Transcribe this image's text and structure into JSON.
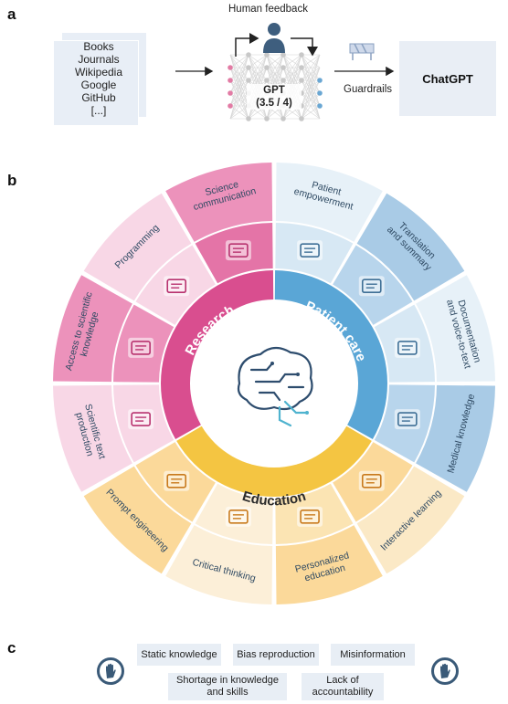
{
  "panels": {
    "a": "a",
    "b": "b",
    "c": "c"
  },
  "panel_a": {
    "sources": [
      "Books",
      "Journals",
      "Wikipedia",
      "Google",
      "GitHub",
      "[...]"
    ],
    "human_feedback": "Human feedback",
    "gpt_label": "GPT",
    "gpt_version": "(3.5 / 4)",
    "guardrails": "Guardrails",
    "output": "ChatGPT",
    "colors": {
      "input_node": "#e27ba4",
      "output_node": "#6aa7d3",
      "hidden_node": "#c8c8c8",
      "person": "#3e5e7e"
    }
  },
  "panel_b": {
    "domains": {
      "research": "Research",
      "patient_care": "Patient care",
      "education": "Education"
    },
    "outer_labels": [
      {
        "line1": "Science",
        "line2": "communication"
      },
      {
        "line1": "Patient",
        "line2": "empowerment"
      },
      {
        "line1": "Translation",
        "line2": "and summary"
      },
      {
        "line1": "Documentation",
        "line2": "and voice-to-text"
      },
      {
        "line1": "Medical knowledge",
        "line2": ""
      },
      {
        "line1": "Interactive learning",
        "line2": ""
      },
      {
        "line1": "Personalized",
        "line2": "education"
      },
      {
        "line1": "Critical thinking",
        "line2": ""
      },
      {
        "line1": "Prompt engineering",
        "line2": ""
      },
      {
        "line1": "Scientific text",
        "line2": "production"
      },
      {
        "line1": "Access to scientific",
        "line2": "knowledge"
      },
      {
        "line1": "Programming",
        "line2": ""
      }
    ],
    "colors": {
      "research": "#d94e8f",
      "patient_care": "#5aa6d6",
      "education": "#f4c542"
    }
  },
  "panel_c": {
    "limitations": [
      "Static knowledge",
      "Bias reproduction",
      "Misinformation"
    ],
    "limitations_row2": [
      {
        "line1": "Shortage in knowledge",
        "line2": "and skills"
      },
      {
        "line1": "Lack of",
        "line2": "accountability"
      }
    ],
    "icons": [
      "stop-hand-icon",
      "stop-hand-icon"
    ]
  }
}
